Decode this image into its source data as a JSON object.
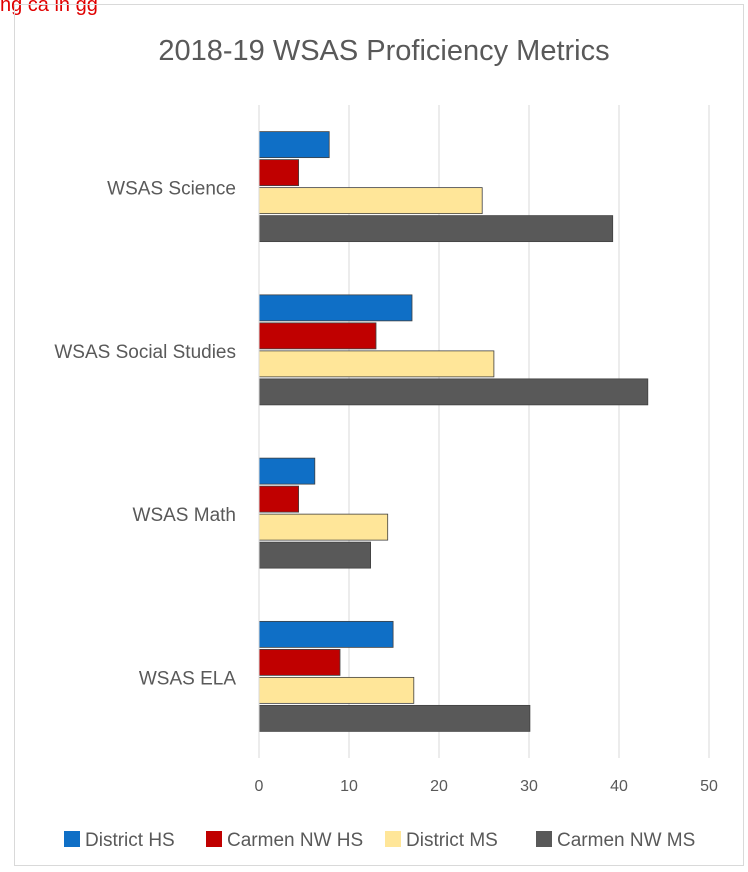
{
  "clipped_text": "ng ca in gg",
  "colors": {
    "District HS": "#0f6fc6",
    "Carmen NW HS": "#c00000",
    "District MS": "#ffe699",
    "Carmen NW MS": "#595959"
  },
  "chart_data": {
    "type": "bar",
    "orientation": "horizontal",
    "title": "2018-19 WSAS Proficiency Metrics",
    "categories": [
      "WSAS ELA",
      "WSAS Math",
      "WSAS Social Studies",
      "WSAS Science"
    ],
    "series": [
      {
        "name": "District HS",
        "values": [
          14.9,
          6.2,
          17.0,
          7.8
        ]
      },
      {
        "name": "Carmen NW HS",
        "values": [
          9.0,
          4.4,
          13.0,
          4.4
        ]
      },
      {
        "name": "District MS",
        "values": [
          17.2,
          14.3,
          26.1,
          24.8
        ]
      },
      {
        "name": "Carmen NW MS",
        "values": [
          30.1,
          12.4,
          43.2,
          39.3
        ]
      }
    ],
    "xlim": [
      0,
      50
    ],
    "xticks": [
      "0",
      "10",
      "20",
      "30",
      "40",
      "50"
    ],
    "xlabel": "",
    "ylabel": "",
    "grid": "vertical",
    "legend_position": "bottom"
  }
}
